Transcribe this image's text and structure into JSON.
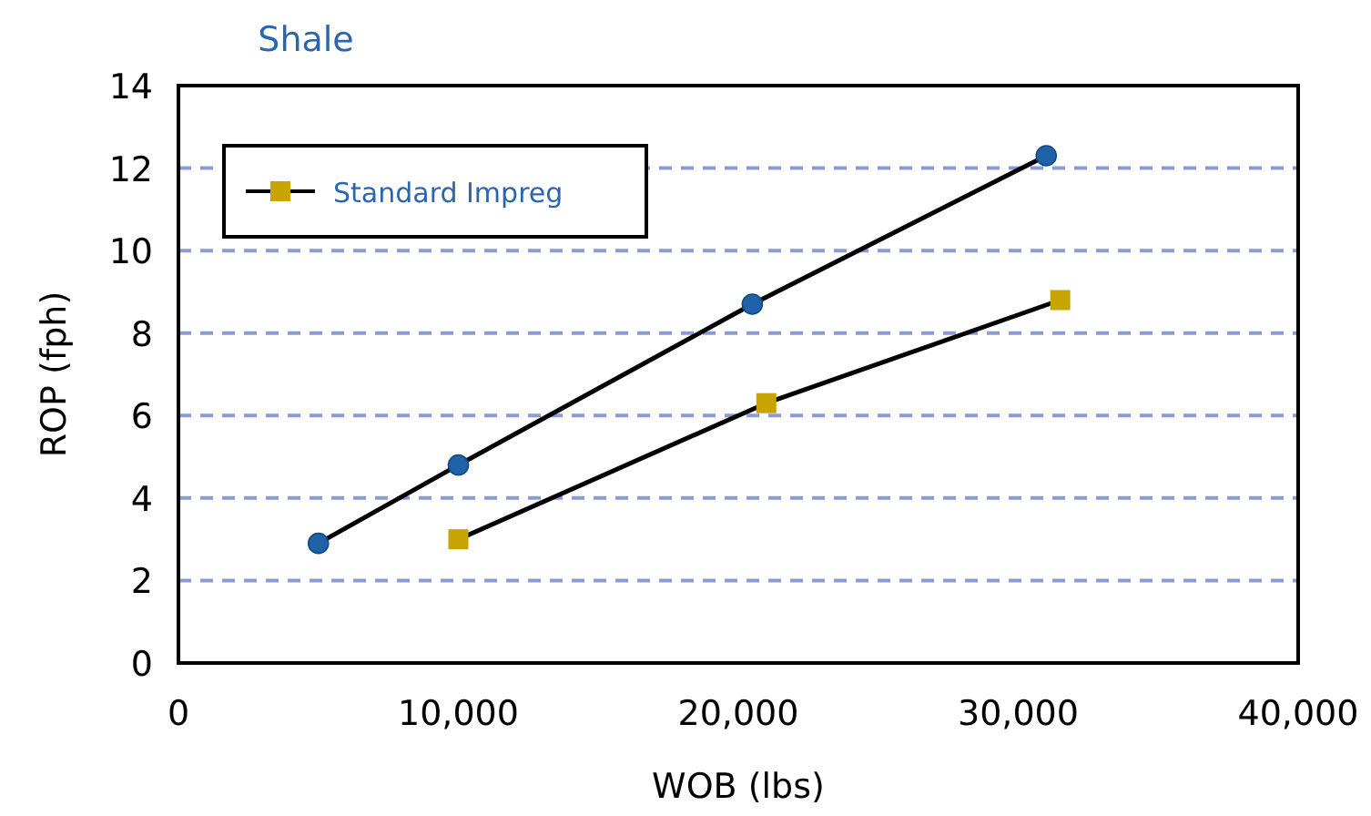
{
  "chart_data": {
    "type": "line",
    "title": "Shale",
    "xlabel": "WOB (lbs)",
    "ylabel": "ROP (fph)",
    "xlim": [
      0,
      40000
    ],
    "xticks": [
      {
        "value": 0,
        "label": "0"
      },
      {
        "value": 10000,
        "label": "10,000"
      },
      {
        "value": 20000,
        "label": "20,000"
      },
      {
        "value": 30000,
        "label": "30,000"
      },
      {
        "value": 40000,
        "label": "40,000"
      }
    ],
    "ylim": [
      0,
      14
    ],
    "yticks": [
      0,
      2,
      4,
      6,
      8,
      10,
      12,
      14
    ],
    "grid": "y",
    "legend": "top left",
    "line_style": "solid",
    "series": [
      {
        "color": "#1f62a8",
        "marker": "circle",
        "x": [
          5000,
          10000,
          20500,
          31000
        ],
        "values": [
          2.9,
          4.8,
          8.7,
          12.3
        ]
      },
      {
        "name": "Standard Impreg",
        "color": "#c8a400",
        "marker": "square",
        "x": [
          10000,
          21000,
          31500
        ],
        "values": [
          3.0,
          6.3,
          8.8
        ]
      }
    ]
  }
}
